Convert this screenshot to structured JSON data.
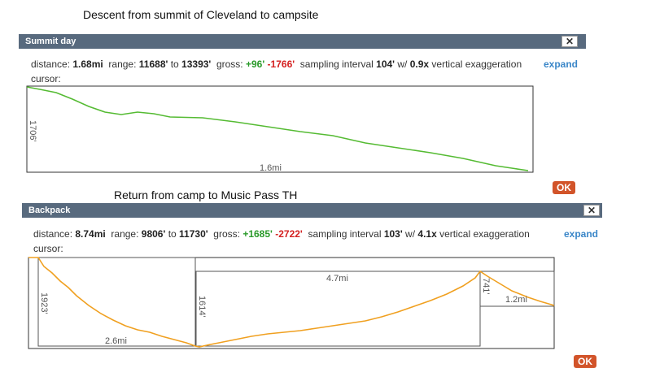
{
  "captions": {
    "top": "Descent from summit of Cleveland to campsite",
    "bottom": "Return from camp to Music Pass TH"
  },
  "panels": [
    {
      "title": "Summit day",
      "close_label": "✕",
      "stats": {
        "distance_label": "distance:",
        "distance": "1.68mi",
        "range_label": "range:",
        "range_min": "11688'",
        "range_to": "to",
        "range_max": "13393'",
        "gross_label": "gross:",
        "gain": "+96'",
        "loss": "-1766'",
        "sampling_label": "sampling interval",
        "sampling": "104'",
        "w_label": "w/",
        "exaggeration": "0.9x",
        "vertical_label": "vertical exaggeration"
      },
      "expand_label": "expand",
      "cursor_label": "cursor:",
      "ok_label": "OK",
      "line_color": "#55bb33",
      "annotations": {
        "vertical": "1706'",
        "horizontal": "1.6mi"
      }
    },
    {
      "title": "Backpack",
      "close_label": "✕",
      "stats": {
        "distance_label": "distance:",
        "distance": "8.74mi",
        "range_label": "range:",
        "range_min": "9806'",
        "range_to": "to",
        "range_max": "11730'",
        "gross_label": "gross:",
        "gain": "+1685'",
        "loss": "-2722'",
        "sampling_label": "sampling interval",
        "sampling": "103'",
        "w_label": "w/",
        "exaggeration": "4.1x",
        "vertical_label": "vertical exaggeration"
      },
      "expand_label": "expand",
      "cursor_label": "cursor:",
      "ok_label": "OK",
      "line_color": "#f0a020",
      "annotations": {
        "v1": "1923'",
        "h1": "2.6mi",
        "v2": "1614'",
        "h2": "4.7mi",
        "v3": "741'",
        "h3": "1.2mi"
      }
    }
  ]
}
